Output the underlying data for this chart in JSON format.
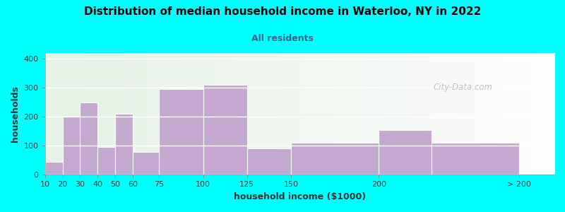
{
  "title": "Distribution of median household income in Waterloo, NY in 2022",
  "subtitle": "All residents",
  "xlabel": "household income ($1000)",
  "ylabel": "households",
  "background_color": "#00FFFF",
  "bar_color": "#C4A8D0",
  "bin_lefts": [
    10,
    20,
    30,
    40,
    50,
    60,
    75,
    100,
    125,
    150,
    200,
    230
  ],
  "bin_widths": [
    10,
    10,
    10,
    10,
    10,
    15,
    25,
    25,
    25,
    50,
    30,
    50
  ],
  "heights": [
    45,
    200,
    250,
    95,
    210,
    80,
    295,
    310,
    90,
    110,
    155,
    110
  ],
  "xtick_positions": [
    10,
    20,
    30,
    40,
    50,
    60,
    75,
    100,
    125,
    150,
    200,
    280
  ],
  "xtick_labels": [
    "10",
    "20",
    "30",
    "40",
    "50",
    "60",
    "75",
    "100",
    "125",
    "150",
    "200",
    "> 200"
  ],
  "ylim": [
    0,
    420
  ],
  "yticks": [
    0,
    100,
    200,
    300,
    400
  ],
  "xlim": [
    10,
    300
  ],
  "watermark": "City-Data.com"
}
